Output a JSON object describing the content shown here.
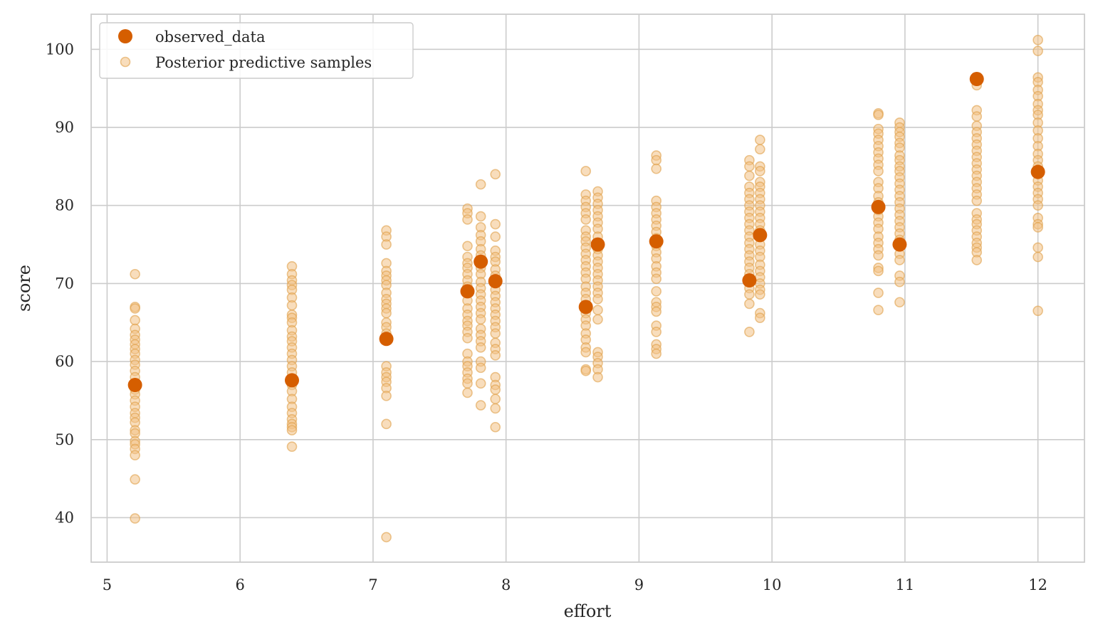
{
  "chart_data": {
    "type": "scatter",
    "title": "",
    "xlabel": "effort",
    "ylabel": "score",
    "xlim": [
      4.88,
      12.35
    ],
    "ylim": [
      34.3,
      104.5
    ],
    "xticks": [
      5,
      6,
      7,
      8,
      9,
      10,
      11,
      12
    ],
    "yticks": [
      40,
      50,
      60,
      70,
      80,
      90,
      100
    ],
    "grid": true,
    "legend_position": "top-left",
    "colors": {
      "observed": "#d55e00",
      "predictive_fill": "#f2c185",
      "predictive_stroke": "#e0a04a",
      "grid": "#cccccc",
      "frame": "#cccccc"
    },
    "series": [
      {
        "name": "observed_data",
        "kind": "observed",
        "points": [
          {
            "x": 5.21,
            "y": 57.0
          },
          {
            "x": 6.39,
            "y": 57.6
          },
          {
            "x": 7.1,
            "y": 62.9
          },
          {
            "x": 7.71,
            "y": 69.0
          },
          {
            "x": 7.81,
            "y": 72.8
          },
          {
            "x": 7.92,
            "y": 70.3
          },
          {
            "x": 8.6,
            "y": 67.0
          },
          {
            "x": 8.69,
            "y": 75.0
          },
          {
            "x": 9.13,
            "y": 75.4
          },
          {
            "x": 9.83,
            "y": 70.4
          },
          {
            "x": 9.91,
            "y": 76.2
          },
          {
            "x": 10.8,
            "y": 79.8
          },
          {
            "x": 10.96,
            "y": 75.0
          },
          {
            "x": 11.54,
            "y": 96.2
          },
          {
            "x": 12.0,
            "y": 84.3
          }
        ]
      },
      {
        "name": "Posterior predictive samples",
        "kind": "predictive",
        "columns": [
          {
            "x": 5.21,
            "y": [
              71.2,
              67.0,
              66.8,
              65.3,
              64.2,
              63.4,
              62.8,
              62.2,
              61.6,
              61.0,
              60.2,
              59.6,
              58.8,
              58.0,
              57.2,
              56.4,
              55.8,
              55.0,
              54.2,
              53.4,
              52.8,
              52.2,
              51.2,
              50.8,
              49.8,
              49.4,
              48.8,
              48.0,
              44.9,
              39.9
            ]
          },
          {
            "x": 6.39,
            "y": [
              72.2,
              71.2,
              70.4,
              69.8,
              69.2,
              68.2,
              67.2,
              66.0,
              65.6,
              65.0,
              64.0,
              63.2,
              62.6,
              61.8,
              61.0,
              60.2,
              59.4,
              58.6,
              57.8,
              57.0,
              56.2,
              55.2,
              54.2,
              53.4,
              52.6,
              52.0,
              51.6,
              51.2,
              49.1
            ]
          },
          {
            "x": 7.1,
            "y": [
              76.8,
              76.0,
              75.0,
              72.6,
              71.6,
              71.0,
              70.4,
              69.8,
              68.8,
              68.0,
              67.4,
              66.8,
              66.2,
              65.0,
              64.4,
              63.6,
              59.4,
              58.6,
              58.0,
              57.4,
              56.6,
              55.6,
              52.0,
              37.5
            ]
          },
          {
            "x": 7.71,
            "y": [
              79.6,
              79.0,
              78.2,
              74.8,
              73.4,
              72.6,
              72.0,
              71.2,
              70.4,
              69.6,
              68.8,
              67.8,
              66.8,
              66.0,
              65.2,
              64.6,
              63.8,
              63.0,
              61.0,
              60.0,
              59.4,
              58.6,
              57.8,
              57.2,
              56.0
            ]
          },
          {
            "x": 7.81,
            "y": [
              82.7,
              78.6,
              77.2,
              76.2,
              75.4,
              74.4,
              73.6,
              72.8,
              72.0,
              71.2,
              70.2,
              69.4,
              68.6,
              67.8,
              67.0,
              66.2,
              65.4,
              64.2,
              63.4,
              62.6,
              61.8,
              60.0,
              59.2,
              57.2,
              54.4
            ]
          },
          {
            "x": 7.92,
            "y": [
              84.0,
              77.6,
              76.0,
              74.2,
              73.4,
              72.8,
              71.8,
              71.0,
              70.0,
              69.2,
              68.4,
              67.6,
              66.8,
              66.0,
              65.2,
              64.4,
              63.6,
              62.4,
              61.6,
              60.8,
              58.0,
              57.0,
              56.4,
              55.2,
              54.0,
              51.6
            ]
          },
          {
            "x": 8.6,
            "y": [
              84.4,
              81.4,
              80.6,
              79.8,
              79.0,
              78.2,
              76.8,
              76.0,
              75.4,
              74.6,
              73.8,
              73.0,
              72.2,
              71.4,
              70.6,
              69.6,
              68.8,
              68.0,
              67.2,
              66.2,
              65.4,
              64.6,
              63.6,
              62.8,
              61.8,
              61.2,
              59.0,
              58.8
            ]
          },
          {
            "x": 8.69,
            "y": [
              81.8,
              81.0,
              80.2,
              79.4,
              78.6,
              77.8,
              77.0,
              76.0,
              75.2,
              74.4,
              73.6,
              72.8,
              72.0,
              71.2,
              70.4,
              69.6,
              68.8,
              68.0,
              66.6,
              65.4,
              61.2,
              60.6,
              59.8,
              59.0,
              58.0
            ]
          },
          {
            "x": 9.13,
            "y": [
              86.4,
              85.8,
              84.7,
              80.6,
              79.8,
              79.0,
              78.2,
              77.4,
              76.6,
              75.8,
              74.8,
              74.0,
              73.2,
              72.2,
              71.4,
              70.6,
              69.0,
              67.6,
              67.0,
              66.4,
              64.6,
              63.8,
              62.2,
              61.6,
              61.0
            ]
          },
          {
            "x": 9.83,
            "y": [
              85.8,
              85.0,
              83.8,
              82.4,
              81.6,
              80.8,
              80.0,
              79.2,
              78.4,
              77.6,
              76.8,
              76.0,
              75.2,
              74.4,
              73.6,
              72.8,
              72.0,
              71.2,
              70.4,
              69.4,
              68.6,
              67.4,
              63.8
            ]
          },
          {
            "x": 9.91,
            "y": [
              88.4,
              87.2,
              85.0,
              84.4,
              83.0,
              82.4,
              81.6,
              80.8,
              80.0,
              79.2,
              78.4,
              77.6,
              76.8,
              76.0,
              75.0,
              74.2,
              73.4,
              72.4,
              71.6,
              70.8,
              70.0,
              69.2,
              68.6,
              66.2,
              65.6
            ]
          },
          {
            "x": 10.8,
            "y": [
              91.8,
              91.6,
              89.8,
              89.2,
              88.4,
              87.6,
              86.8,
              86.0,
              85.2,
              84.4,
              83.0,
              82.2,
              81.2,
              80.4,
              79.4,
              78.6,
              77.8,
              77.0,
              76.0,
              75.2,
              74.4,
              73.6,
              72.0,
              71.6,
              68.8,
              66.6
            ]
          },
          {
            "x": 10.96,
            "y": [
              90.6,
              90.0,
              89.4,
              88.8,
              88.0,
              87.4,
              86.4,
              85.8,
              85.0,
              84.4,
              83.6,
              82.8,
              82.0,
              81.2,
              80.4,
              79.6,
              78.8,
              78.0,
              77.2,
              76.4,
              75.6,
              74.8,
              73.8,
              73.0,
              71.0,
              70.2,
              67.6
            ]
          },
          {
            "x": 11.54,
            "y": [
              95.4,
              92.2,
              91.4,
              90.2,
              89.4,
              88.6,
              87.8,
              87.0,
              86.2,
              85.4,
              84.6,
              83.8,
              83.0,
              82.2,
              81.4,
              80.6,
              79.0,
              78.2,
              77.6,
              76.8,
              76.0,
              75.2,
              74.6,
              74.0,
              73.0
            ]
          },
          {
            "x": 12.0,
            "y": [
              101.2,
              99.8,
              96.4,
              95.8,
              94.8,
              94.0,
              93.0,
              92.2,
              91.6,
              90.6,
              89.6,
              88.6,
              87.6,
              86.6,
              85.8,
              85.0,
              84.0,
              83.2,
              82.4,
              81.6,
              80.8,
              80.0,
              78.4,
              77.6,
              77.2,
              74.6,
              73.4,
              66.5
            ]
          }
        ]
      }
    ]
  }
}
